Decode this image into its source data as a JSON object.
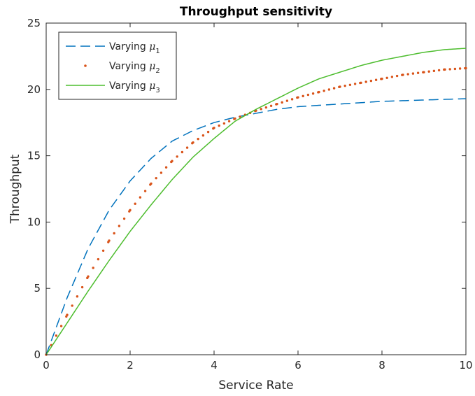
{
  "chart_data": {
    "type": "line",
    "title": "Throughput sensitivity",
    "xlabel": "Service Rate",
    "ylabel": "Throughput",
    "xlim": [
      0,
      10
    ],
    "ylim": [
      0,
      25
    ],
    "xticks": [
      0,
      2,
      4,
      6,
      8,
      10
    ],
    "yticks": [
      0,
      5,
      10,
      15,
      20,
      25
    ],
    "grid": false,
    "legend_position": "top-left",
    "series": [
      {
        "name": "Varying μ1",
        "label_base": "Varying ",
        "label_symbol": "μ",
        "label_subscript": "1",
        "color": "#0072BD",
        "style": "dashed",
        "x": [
          0,
          0.5,
          1,
          1.5,
          2,
          2.5,
          3,
          3.5,
          4,
          4.5,
          5,
          5.5,
          6,
          6.5,
          7,
          7.5,
          8,
          8.5,
          9,
          9.5,
          10
        ],
        "y": [
          0,
          4.3,
          8.0,
          10.9,
          13.1,
          14.8,
          16.1,
          16.9,
          17.5,
          17.9,
          18.2,
          18.5,
          18.7,
          18.8,
          18.9,
          19.0,
          19.1,
          19.15,
          19.2,
          19.25,
          19.3
        ]
      },
      {
        "name": "Varying μ2",
        "label_base": "Varying ",
        "label_symbol": "μ",
        "label_subscript": "2",
        "color": "#D95319",
        "style": "dotted",
        "x": [
          0,
          0.5,
          1,
          1.5,
          2,
          2.5,
          3,
          3.5,
          4,
          4.5,
          5,
          5.5,
          6,
          6.5,
          7,
          7.5,
          8,
          8.5,
          9,
          9.5,
          10
        ],
        "y": [
          0,
          3.0,
          5.9,
          8.6,
          10.9,
          12.9,
          14.6,
          16.0,
          17.1,
          17.8,
          18.4,
          18.9,
          19.4,
          19.8,
          20.2,
          20.5,
          20.8,
          21.1,
          21.3,
          21.5,
          21.6
        ]
      },
      {
        "name": "Varying μ3",
        "label_base": "Varying ",
        "label_symbol": "μ",
        "label_subscript": "3",
        "color": "#4DBD2E",
        "style": "solid",
        "x": [
          0,
          0.5,
          1,
          1.5,
          2,
          2.5,
          3,
          3.5,
          4,
          4.5,
          5,
          5.5,
          6,
          6.5,
          7,
          7.5,
          8,
          8.5,
          9,
          9.5,
          10
        ],
        "y": [
          0,
          2.4,
          4.8,
          7.1,
          9.3,
          11.3,
          13.2,
          14.9,
          16.3,
          17.6,
          18.5,
          19.3,
          20.1,
          20.8,
          21.3,
          21.8,
          22.2,
          22.5,
          22.8,
          23.0,
          23.1
        ]
      }
    ]
  }
}
